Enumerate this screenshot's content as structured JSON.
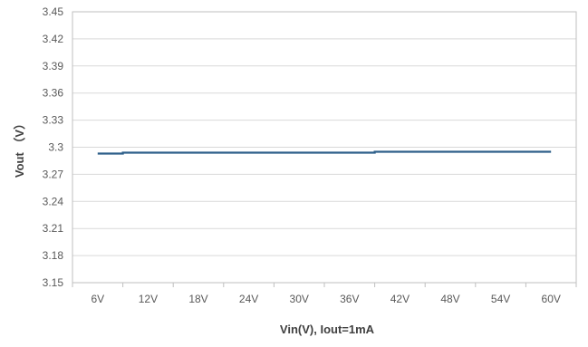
{
  "chart_data": {
    "type": "line",
    "title": "",
    "xlabel": "Vin(V), Iout=1mA",
    "ylabel": "Vout （V）",
    "categories": [
      "6V",
      "12V",
      "18V",
      "24V",
      "30V",
      "36V",
      "42V",
      "48V",
      "54V",
      "60V"
    ],
    "series": [
      {
        "values": [
          3.293,
          3.294,
          3.294,
          3.294,
          3.294,
          3.294,
          3.295,
          3.295,
          3.295,
          3.295
        ],
        "color": "#2e5f8a"
      }
    ],
    "ylim": [
      3.15,
      3.45
    ],
    "yticks": [
      "3.15",
      "3.18",
      "3.21",
      "3.24",
      "3.27",
      "3.3",
      "3.33",
      "3.36",
      "3.39",
      "3.42",
      "3.45"
    ],
    "grid": "horizontal",
    "legend": "none"
  }
}
